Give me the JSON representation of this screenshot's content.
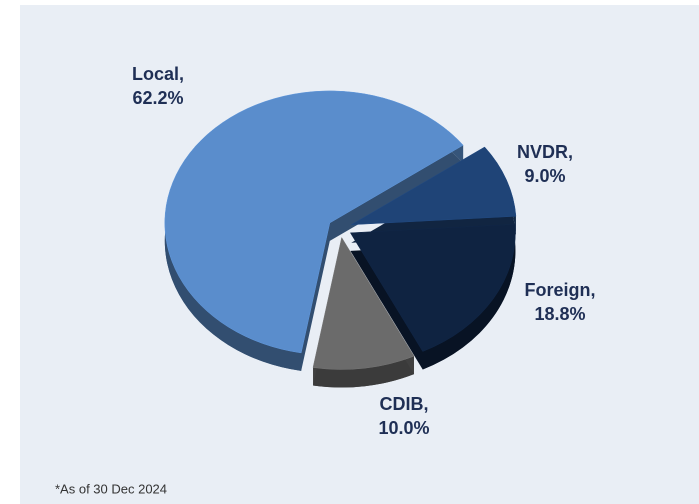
{
  "chart_data": {
    "type": "pie",
    "categories": [
      "Local,",
      "NVDR,",
      "Foreign,",
      "CDIB,"
    ],
    "values": [
      62.2,
      9.0,
      18.8,
      10.0
    ],
    "value_labels": [
      "62.2%",
      "9.0%",
      "18.8%",
      "10.0%"
    ],
    "colors": [
      "#5a8dcc",
      "#1f4477",
      "#0f2341",
      "#6b6b6b"
    ],
    "footnote": "*As of 30 Dec 2024"
  }
}
